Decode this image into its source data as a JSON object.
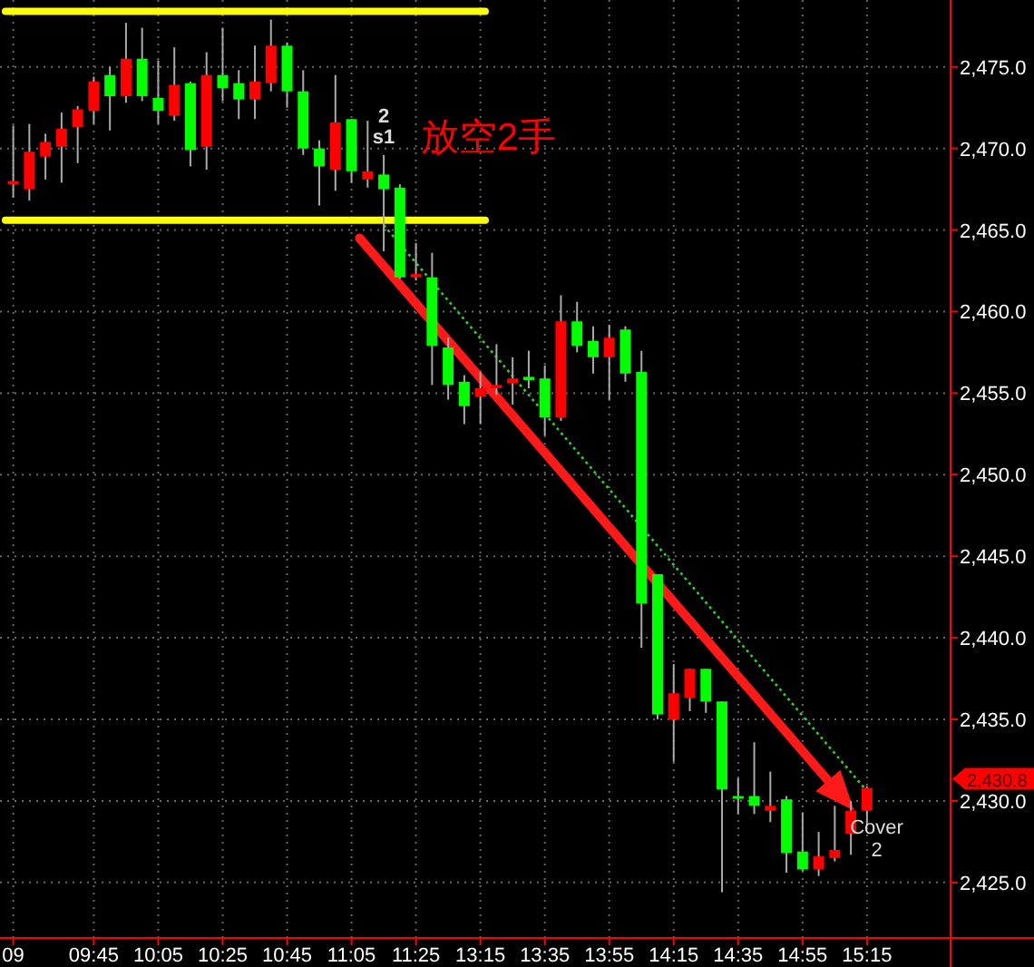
{
  "chart_data": {
    "type": "candlestick",
    "categories": [
      "09",
      null,
      null,
      null,
      null,
      "09:45",
      null,
      null,
      null,
      "10:05",
      null,
      null,
      null,
      "10:25",
      null,
      null,
      null,
      "10:45",
      null,
      null,
      null,
      "11:05",
      null,
      null,
      null,
      "11:25",
      null,
      null,
      null,
      "13:15",
      null,
      null,
      null,
      "13:35",
      null,
      null,
      null,
      "13:55",
      null,
      null,
      null,
      "14:15",
      null,
      null,
      null,
      "14:35",
      null,
      null,
      null,
      "14:55",
      null,
      null,
      null,
      "15:15"
    ],
    "ohlc": [
      [
        2467.8,
        2471.4,
        2467.0,
        2468.0
      ],
      [
        2467.5,
        2471.5,
        2466.8,
        2469.8
      ],
      [
        2469.5,
        2470.9,
        2468.1,
        2470.4
      ],
      [
        2470.1,
        2472.2,
        2467.9,
        2471.2
      ],
      [
        2471.3,
        2472.6,
        2469.1,
        2472.4
      ],
      [
        2472.3,
        2474.4,
        2471.5,
        2474.1
      ],
      [
        2474.5,
        2475.0,
        2471.1,
        2473.2
      ],
      [
        2473.2,
        2477.7,
        2472.8,
        2475.5
      ],
      [
        2475.5,
        2477.4,
        2472.9,
        2473.2
      ],
      [
        2473.1,
        2475.4,
        2471.5,
        2472.3
      ],
      [
        2472.0,
        2476.2,
        2471.7,
        2473.9
      ],
      [
        2474.0,
        2474.1,
        2468.9,
        2469.9
      ],
      [
        2470.1,
        2475.9,
        2468.7,
        2474.5
      ],
      [
        2474.5,
        2477.4,
        2472.9,
        2473.7
      ],
      [
        2474.0,
        2474.8,
        2471.8,
        2473.0
      ],
      [
        2473.0,
        2476.3,
        2471.8,
        2474.1
      ],
      [
        2474.0,
        2477.9,
        2473.5,
        2476.3
      ],
      [
        2476.3,
        2476.5,
        2472.5,
        2473.5
      ],
      [
        2473.5,
        2474.8,
        2469.6,
        2470.0
      ],
      [
        2470.0,
        2470.5,
        2466.5,
        2468.9
      ],
      [
        2468.7,
        2474.5,
        2467.4,
        2471.6
      ],
      [
        2471.8,
        2471.8,
        2467.9,
        2468.6
      ],
      [
        2468.1,
        2471.7,
        2467.6,
        2468.6
      ],
      [
        2468.4,
        2469.6,
        2463.7,
        2467.5
      ],
      [
        2467.6,
        2467.8,
        2462.0,
        2462.1
      ],
      [
        2462.1,
        2464.2,
        2461.9,
        2462.3
      ],
      [
        2462.1,
        2463.6,
        2455.5,
        2457.9
      ],
      [
        2457.8,
        2458.4,
        2454.6,
        2455.5
      ],
      [
        2455.7,
        2456.1,
        2453.1,
        2454.2
      ],
      [
        2454.8,
        2456.3,
        2453.1,
        2455.3
      ],
      [
        2455.3,
        2458.0,
        2454.9,
        2455.5
      ],
      [
        2455.6,
        2457.2,
        2454.3,
        2455.9
      ],
      [
        2456.0,
        2457.6,
        2455.3,
        2455.8
      ],
      [
        2455.9,
        2456.7,
        2452.4,
        2453.5
      ],
      [
        2453.5,
        2461.0,
        2453.3,
        2459.4
      ],
      [
        2459.4,
        2460.6,
        2457.5,
        2457.9
      ],
      [
        2458.2,
        2459.1,
        2456.2,
        2457.2
      ],
      [
        2457.2,
        2459.2,
        2454.6,
        2458.4
      ],
      [
        2458.9,
        2459.1,
        2455.7,
        2456.2
      ],
      [
        2456.3,
        2457.6,
        2439.4,
        2442.1
      ],
      [
        2443.9,
        2443.9,
        2435.0,
        2435.3
      ],
      [
        2435.0,
        2438.4,
        2432.4,
        2436.6
      ],
      [
        2436.3,
        2438.1,
        2435.5,
        2438.1
      ],
      [
        2438.1,
        2438.1,
        2435.4,
        2436.1
      ],
      [
        2436.1,
        2436.1,
        2424.4,
        2430.7
      ],
      [
        2430.3,
        2431.4,
        2429.2,
        2430.2
      ],
      [
        2430.3,
        2433.6,
        2429.2,
        2429.7
      ],
      [
        2429.4,
        2431.8,
        2428.7,
        2429.7
      ],
      [
        2430.1,
        2430.3,
        2425.6,
        2426.8
      ],
      [
        2426.9,
        2429.3,
        2425.7,
        2425.8
      ],
      [
        2425.8,
        2428.1,
        2425.4,
        2426.6
      ],
      [
        2426.5,
        2429.7,
        2426.3,
        2427.0
      ],
      [
        2428.0,
        2430.0,
        2426.7,
        2429.4
      ],
      [
        2429.4,
        2430.9,
        2428.5,
        2430.8
      ]
    ],
    "colors": [
      "#ff0000",
      "#ff0000",
      "#ff0000",
      "#ff0000",
      "#ff0000",
      "#ff0000",
      "#00ff00",
      "#ff0000",
      "#00ff00",
      "#00ff00",
      "#ff0000",
      "#00ff00",
      "#ff0000",
      "#00ff00",
      "#00ff00",
      "#ff0000",
      "#ff0000",
      "#00ff00",
      "#00ff00",
      "#00ff00",
      "#ff0000",
      "#00ff00",
      "#ff0000",
      "#00ff00",
      "#00ff00",
      "#ff0000",
      "#00ff00",
      "#00ff00",
      "#00ff00",
      "#ff0000",
      "#ff0000",
      "#ff0000",
      "#00ff00",
      "#00ff00",
      "#ff0000",
      "#00ff00",
      "#00ff00",
      "#ff0000",
      "#00ff00",
      "#00ff00",
      "#00ff00",
      "#ff0000",
      "#ff0000",
      "#00ff00",
      "#00ff00",
      "#00ff00",
      "#00ff00",
      "#ff0000",
      "#00ff00",
      "#00ff00",
      "#ff0000",
      "#ff0000",
      "#ff0000",
      "#ff0000"
    ],
    "series": [
      {
        "type": "line",
        "color": "#33cc33",
        "line_style": "dotted",
        "values": [
          null,
          null,
          null,
          null,
          null,
          null,
          null,
          null,
          null,
          null,
          null,
          null,
          null,
          null,
          null,
          null,
          null,
          null,
          null,
          null,
          null,
          null,
          null,
          2465.3,
          null,
          null,
          null,
          null,
          null,
          null,
          null,
          null,
          null,
          null,
          null,
          null,
          null,
          null,
          null,
          null,
          null,
          null,
          null,
          null,
          null,
          null,
          null,
          null,
          null,
          null,
          null,
          null,
          null,
          2430.6
        ]
      }
    ],
    "ylim": [
      2421.6,
      2479.1
    ],
    "yticks": [
      {
        "value": 2425,
        "label": "2,425.0"
      },
      {
        "value": 2430,
        "label": "2,430.0"
      },
      {
        "value": 2435,
        "label": "2,435.0"
      },
      {
        "value": 2440,
        "label": "2,440.0"
      },
      {
        "value": 2445,
        "label": "2,445.0"
      },
      {
        "value": 2450,
        "label": "2,450.0"
      },
      {
        "value": 2455,
        "label": "2,455.0"
      },
      {
        "value": 2460,
        "label": "2,460.0"
      },
      {
        "value": 2465,
        "label": "2,465.0"
      },
      {
        "value": 2470,
        "label": "2,470.0"
      },
      {
        "value": 2475,
        "label": "2,475.0"
      }
    ],
    "grid": true,
    "ref_lines": [
      {
        "axis": "y",
        "value": 2478.4,
        "color": "#ffff00"
      },
      {
        "axis": "y",
        "value": 2465.6,
        "color": "#ffff00"
      }
    ],
    "annotations": [
      "2",
      "s1",
      "放空2手",
      "Cover",
      "2",
      "2,430.8"
    ]
  }
}
